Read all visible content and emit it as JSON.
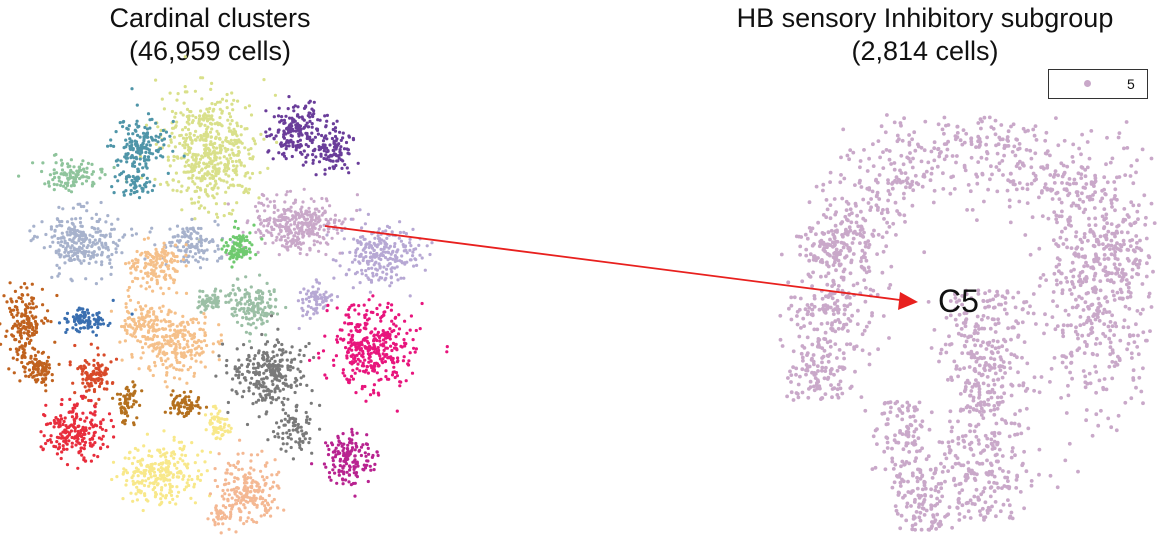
{
  "panels": {
    "left": {
      "title_line1": "Cardinal clusters",
      "title_line2": "(46,959 cells)"
    },
    "right": {
      "title_line1": "HB sensory Inhibitory subgroup",
      "title_line2": "(2,814 cells)"
    }
  },
  "legend": {
    "label": "5",
    "color": "#c9a8c9"
  },
  "annotation": {
    "label": "C5",
    "arrow_color": "#e8201e"
  },
  "chart_data": [
    {
      "type": "scatter",
      "title": "Cardinal clusters (46,959 cells)",
      "xlabel": "",
      "ylabel": "",
      "axes_visible": false,
      "clusters": [
        {
          "color": "#d9e08a"
        },
        {
          "color": "#4f95a8"
        },
        {
          "color": "#6a3d9a"
        },
        {
          "color": "#8fc49c"
        },
        {
          "color": "#a7b2cc"
        },
        {
          "color": "#c9a8c9"
        },
        {
          "color": "#b7a8d4"
        },
        {
          "color": "#6fca6f"
        },
        {
          "color": "#f5c08a"
        },
        {
          "color": "#9bbfa5"
        },
        {
          "color": "#c0621e"
        },
        {
          "color": "#3a6fb0"
        },
        {
          "color": "#d84a2a"
        },
        {
          "color": "#e82d3c"
        },
        {
          "color": "#b4701e"
        },
        {
          "color": "#f8e88a"
        },
        {
          "color": "#f4b893"
        },
        {
          "color": "#7a7a7a"
        },
        {
          "color": "#e8157d"
        },
        {
          "color": "#b82390"
        }
      ]
    },
    {
      "type": "scatter",
      "title": "HB sensory Inhibitory subgroup (2,814 cells)",
      "xlabel": "",
      "ylabel": "",
      "axes_visible": false,
      "series": [
        {
          "name": "5",
          "color": "#c9a8c9"
        }
      ]
    }
  ]
}
